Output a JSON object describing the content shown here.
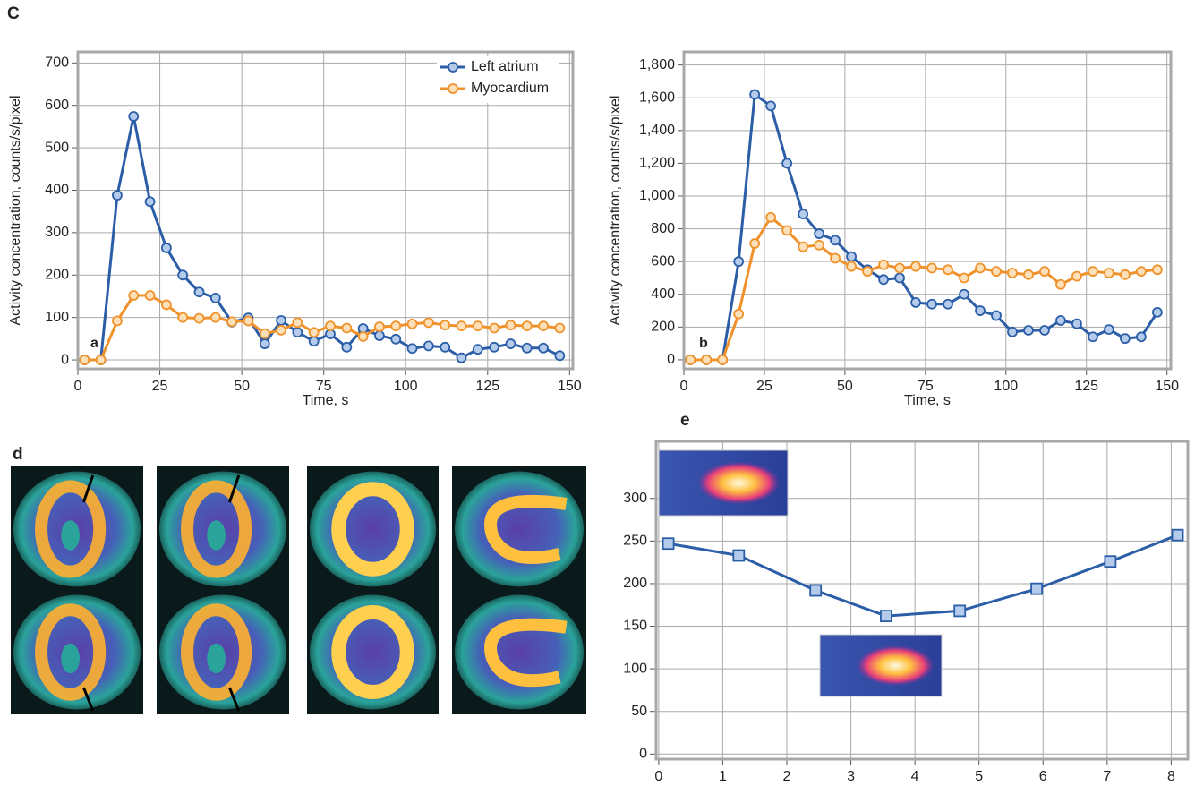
{
  "panels": {
    "c": "C",
    "d": "d",
    "e": "e"
  },
  "chart_data": [
    {
      "type": "line",
      "xlabel": "Time, s",
      "ylabel": "Activity concentration, counts/s/pixel",
      "annotation": "a",
      "xlim": [
        0,
        151
      ],
      "ylim": [
        -21,
        726
      ],
      "xticks": [
        0,
        25,
        50,
        75,
        100,
        125,
        150
      ],
      "yticks": [
        0,
        100,
        200,
        300,
        400,
        500,
        600,
        700
      ],
      "grid": true,
      "legend": "top-right",
      "marker": "circle",
      "x": [
        2,
        7,
        12,
        17,
        22,
        27,
        32,
        37,
        42,
        47,
        52,
        57,
        62,
        67,
        72,
        77,
        82,
        87,
        92,
        97,
        102,
        107,
        112,
        117,
        122,
        127,
        132,
        137,
        142,
        147
      ],
      "series": [
        {
          "name": "Left atrium",
          "color": "#2b5ea7",
          "values": [
            0,
            0,
            388,
            574,
            373,
            264,
            200,
            160,
            146,
            89,
            99,
            38,
            93,
            65,
            44,
            61,
            30,
            74,
            57,
            49,
            27,
            33,
            30,
            5,
            25,
            30,
            38,
            28,
            28,
            10
          ]
        },
        {
          "name": "Myocardium",
          "color": "#f0922b",
          "values": [
            0,
            0,
            92,
            152,
            152,
            130,
            100,
            98,
            100,
            90,
            92,
            62,
            70,
            88,
            65,
            80,
            75,
            55,
            78,
            80,
            85,
            88,
            82,
            80,
            80,
            75,
            82,
            80,
            80,
            75
          ]
        }
      ]
    },
    {
      "type": "line",
      "xlabel": "Time, s",
      "ylabel": "Activity concentration, counts/s/pixel",
      "annotation": "b",
      "xlim": [
        0,
        151.2
      ],
      "ylim": [
        -55,
        1880
      ],
      "xticks": [
        0,
        25,
        50,
        75,
        100,
        125,
        150
      ],
      "yticks": [
        0,
        200,
        400,
        600,
        800,
        {
          "value": 1000,
          "label": "1,000"
        },
        {
          "value": 1200,
          "label": "1,200"
        },
        {
          "value": 1400,
          "label": "1,400"
        },
        {
          "value": 1600,
          "label": "1,600"
        },
        {
          "value": 1800,
          "label": "1,800"
        }
      ],
      "grid": true,
      "marker": "circle",
      "x": [
        2,
        7,
        12,
        17,
        22,
        27,
        32,
        37,
        42,
        47,
        52,
        57,
        62,
        67,
        72,
        77,
        82,
        87,
        92,
        97,
        102,
        107,
        112,
        117,
        122,
        127,
        132,
        137,
        142,
        147
      ],
      "series": [
        {
          "name": "Left atrium",
          "color": "#2b5ea7",
          "values": [
            0,
            0,
            0,
            600,
            1620,
            1550,
            1200,
            890,
            770,
            730,
            630,
            550,
            490,
            500,
            350,
            340,
            340,
            400,
            300,
            270,
            170,
            180,
            180,
            240,
            220,
            140,
            185,
            130,
            140,
            290
          ]
        },
        {
          "name": "Myocardium",
          "color": "#f0922b",
          "values": [
            0,
            0,
            0,
            280,
            710,
            870,
            790,
            690,
            700,
            620,
            570,
            540,
            580,
            560,
            570,
            560,
            550,
            500,
            560,
            540,
            530,
            520,
            540,
            460,
            510,
            540,
            530,
            520,
            540,
            550
          ]
        }
      ]
    },
    {
      "type": "line",
      "xlim": [
        -0.04,
        8.26
      ],
      "ylim": [
        -6,
        367
      ],
      "xticks": [
        0,
        1,
        2,
        3,
        4,
        5,
        6,
        7,
        8
      ],
      "yticks": [
        0,
        50,
        100,
        150,
        200,
        250,
        300
      ],
      "grid": true,
      "marker": "square",
      "x": [
        0.15,
        1.25,
        2.45,
        3.55,
        4.7,
        5.9,
        7.05,
        8.1
      ],
      "series": [
        {
          "color": "#2b5ea7",
          "values": [
            247,
            233,
            192,
            162,
            168,
            194,
            226,
            257
          ]
        }
      ]
    }
  ]
}
